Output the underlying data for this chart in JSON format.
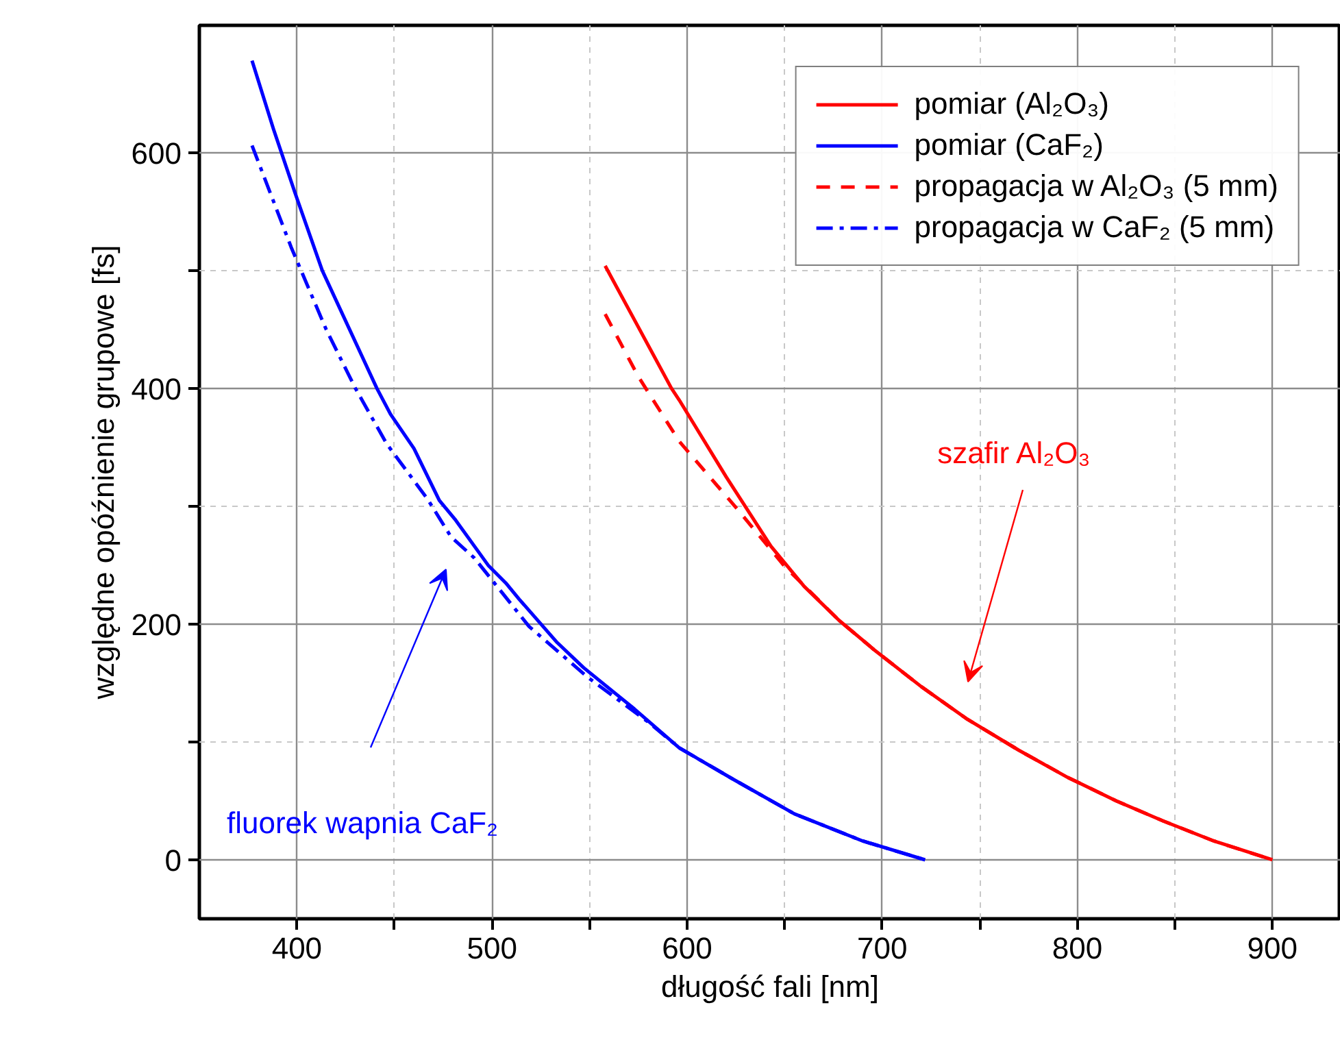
{
  "chart_data": {
    "type": "line",
    "xlabel": "długość fali [nm]",
    "ylabel": "względne opóźnienie grupowe [fs]",
    "xlim": [
      350,
      935
    ],
    "ylim": [
      -50,
      708
    ],
    "xticks": [
      400,
      {
        "value": 450,
        "label": null
      },
      500,
      {
        "value": 550,
        "label": null
      },
      600,
      {
        "value": 650,
        "label": null
      },
      700,
      {
        "value": 750,
        "label": null
      },
      800,
      {
        "value": 850,
        "label": null
      },
      900
    ],
    "yticks": [
      0,
      {
        "value": 100,
        "label": null
      },
      200,
      {
        "value": 300,
        "label": null
      },
      400,
      {
        "value": 500,
        "label": null
      },
      600
    ],
    "grid": true,
    "legend": "top right",
    "series": [
      {
        "name": "pomiar (Al₂O₃)",
        "color": "#ff0000",
        "line_style": "solid",
        "x": [
          558,
          575,
          592,
          596,
          620,
          643,
          660,
          678,
          696,
          720,
          743,
          770,
          795,
          820,
          844,
          870,
          900
        ],
        "values": [
          504,
          452,
          400,
          390,
          325,
          266,
          232,
          203,
          178,
          147,
          120,
          93,
          70,
          50,
          33,
          16,
          0
        ]
      },
      {
        "name": "pomiar (CaF₂)",
        "color": "#0000ff",
        "line_style": "solid",
        "x": [
          377,
          388,
          399,
          413,
          427,
          441,
          448,
          460,
          473,
          481,
          498,
          507,
          514,
          533,
          547,
          573,
          596,
          624,
          655,
          690,
          722
        ],
        "values": [
          678,
          620,
          566,
          500,
          450,
          400,
          378,
          349,
          305,
          289,
          250,
          235,
          221,
          185,
          163,
          128,
          95,
          68,
          39,
          16,
          0
        ]
      },
      {
        "name": "propagacja w Al₂O₃ (5 mm)",
        "color": "#ff0000",
        "line_style": "dashed",
        "x": [
          558,
          575,
          596,
          625,
          650,
          678,
          696,
          720,
          743,
          770,
          795,
          820,
          844,
          870,
          900
        ],
        "values": [
          463,
          410,
          355,
          299,
          249,
          203,
          178,
          147,
          120,
          93,
          70,
          50,
          33,
          16,
          0
        ]
      },
      {
        "name": "propagacja w CaF₂ (5 mm)",
        "color": "#0000ff",
        "line_style": "dashdot",
        "x": [
          377,
          397,
          415,
          430,
          446,
          467,
          479,
          491,
          519,
          549,
          580,
          596,
          624,
          655,
          690,
          722
        ],
        "values": [
          606,
          520,
          450,
          400,
          353,
          306,
          274,
          256,
          198,
          155,
          117,
          95,
          68,
          39,
          16,
          0
        ]
      }
    ],
    "annotations": [
      "szafir Al₂O₃",
      "fluorek wapnia CaF₂"
    ]
  }
}
